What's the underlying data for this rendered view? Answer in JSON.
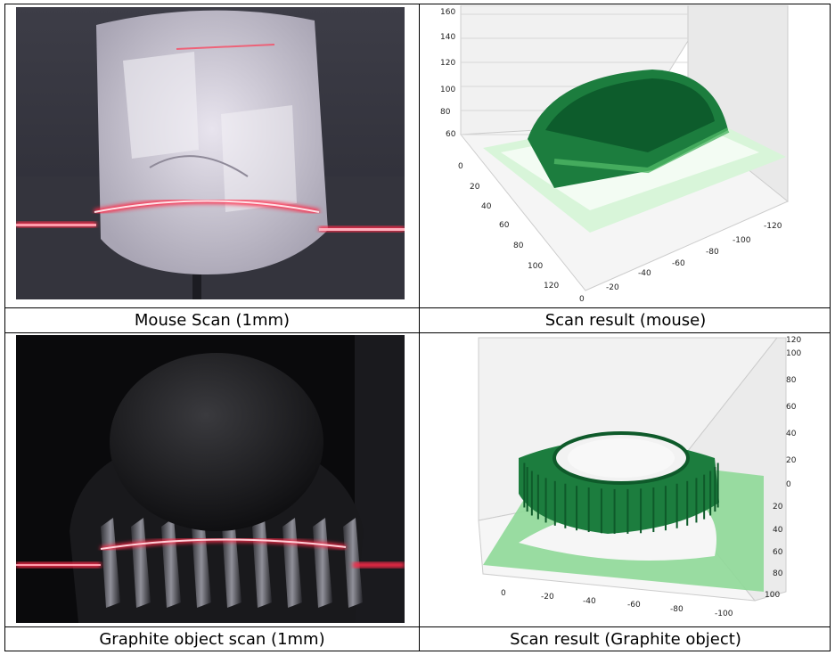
{
  "panels": [
    {
      "caption": "Mouse Scan (1mm)",
      "kind": "photo",
      "subject": "mouse",
      "image_icon": "laser-photo"
    },
    {
      "caption": "Scan result (mouse)",
      "kind": "3d-point-cloud",
      "chart_type": "scatter",
      "z_ticks": [
        "60",
        "80",
        "100",
        "120",
        "140",
        "160"
      ],
      "y_ticks": [
        "0",
        "20",
        "40",
        "60",
        "80",
        "100",
        "120"
      ],
      "x_ticks": [
        "0",
        "-20",
        "-40",
        "-60",
        "-80",
        "-100",
        "-120"
      ],
      "colors": {
        "top": "#0d5c2c",
        "base": "#c7f0c9"
      }
    },
    {
      "caption": "Graphite object scan (1mm)",
      "kind": "photo",
      "subject": "graphite object",
      "image_icon": "laser-photo"
    },
    {
      "caption": "Scan result (Graphite object)",
      "kind": "3d-point-cloud",
      "chart_type": "scatter",
      "z_ticks": [
        "0",
        "20",
        "40",
        "60",
        "80",
        "100",
        "120"
      ],
      "y_ticks": [
        "0",
        "20",
        "40",
        "60",
        "80",
        "100"
      ],
      "x_ticks": [
        "0",
        "-20",
        "-40",
        "-60",
        "-80",
        "-100"
      ],
      "colors": {
        "top": "#145f2e",
        "base": "#7fd487"
      }
    }
  ]
}
